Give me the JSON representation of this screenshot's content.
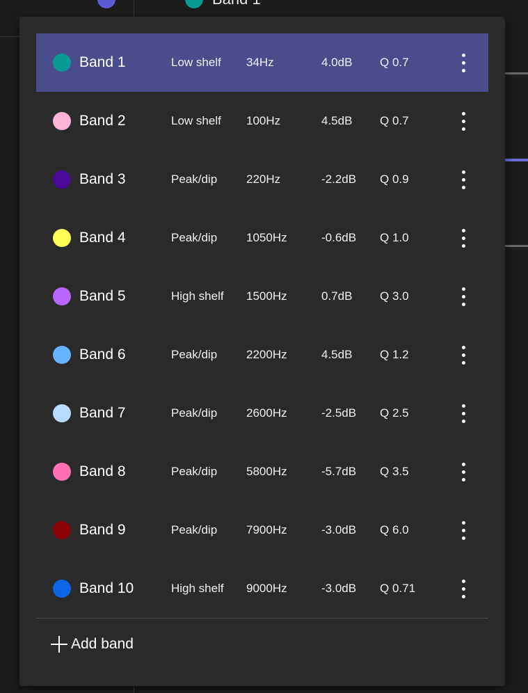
{
  "background": {
    "top_label": "Band 1"
  },
  "menu": {
    "bands": [
      {
        "name": "Band 1",
        "type": "Low shelf",
        "freq": "34Hz",
        "gain": "4.0dB",
        "q": "Q 0.7",
        "color": "#0a9a96",
        "selected": true
      },
      {
        "name": "Band 2",
        "type": "Low shelf",
        "freq": "100Hz",
        "gain": "4.5dB",
        "q": "Q 0.7",
        "color": "#ffb3d9"
      },
      {
        "name": "Band 3",
        "type": "Peak/dip",
        "freq": "220Hz",
        "gain": "-2.2dB",
        "q": "Q 0.9",
        "color": "#4b0a9a"
      },
      {
        "name": "Band 4",
        "type": "Peak/dip",
        "freq": "1050Hz",
        "gain": "-0.6dB",
        "q": "Q 1.0",
        "color": "#ffff55"
      },
      {
        "name": "Band 5",
        "type": "High shelf",
        "freq": "1500Hz",
        "gain": "0.7dB",
        "q": "Q 3.0",
        "color": "#b866ff"
      },
      {
        "name": "Band 6",
        "type": "Peak/dip",
        "freq": "2200Hz",
        "gain": "4.5dB",
        "q": "Q 1.2",
        "color": "#66b3ff"
      },
      {
        "name": "Band 7",
        "type": "Peak/dip",
        "freq": "2600Hz",
        "gain": "-2.5dB",
        "q": "Q 2.5",
        "color": "#b8dcff"
      },
      {
        "name": "Band 8",
        "type": "Peak/dip",
        "freq": "5800Hz",
        "gain": "-5.7dB",
        "q": "Q 3.5",
        "color": "#ff6fb3"
      },
      {
        "name": "Band 9",
        "type": "Peak/dip",
        "freq": "7900Hz",
        "gain": "-3.0dB",
        "q": "Q 6.0",
        "color": "#8c0008"
      },
      {
        "name": "Band 10",
        "type": "High shelf",
        "freq": "9000Hz",
        "gain": "-3.0dB",
        "q": "Q 0.71",
        "color": "#0a66e6"
      }
    ],
    "add_band_label": "Add band",
    "icons": {
      "row_menu": "more-vertical-icon",
      "add": "plus-icon"
    },
    "accent_color": "#4b4c8c"
  }
}
